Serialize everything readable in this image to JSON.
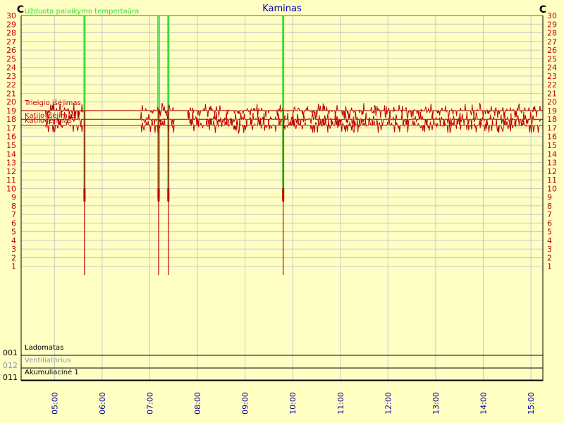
{
  "chart_data": {
    "type": "line",
    "title": "Kaminas",
    "y_unit_left": "C",
    "y_unit_right": "C",
    "ylim": [
      0,
      30
    ],
    "y_ticks": [
      1,
      2,
      3,
      4,
      5,
      6,
      7,
      8,
      9,
      10,
      11,
      12,
      13,
      14,
      15,
      16,
      17,
      18,
      19,
      20,
      21,
      22,
      23,
      24,
      25,
      26,
      27,
      28,
      29,
      30
    ],
    "x_tick_labels": [
      "05:00",
      "06:00",
      "07:00",
      "08:00",
      "09:00",
      "10:00",
      "11:00",
      "12:00",
      "13:00",
      "14:00",
      "15:00"
    ],
    "x_range_hours": [
      4.3,
      15.25
    ],
    "grid": true,
    "series": [
      {
        "name": "Užduota palaikymo tempertaūra",
        "color": "#33dd33",
        "base": 30,
        "events": [
          {
            "start": 5.62,
            "end": 5.64
          },
          {
            "start": 7.17,
            "end": 7.2
          },
          {
            "start": 7.38,
            "end": 7.4
          },
          {
            "start": 9.79,
            "end": 9.81
          }
        ]
      },
      {
        "name": "Trieigio išėjimas",
        "color": "#c00000",
        "base": 19
      },
      {
        "name": "Katilo išėjimas",
        "color": "#c00000",
        "base": 18
      },
      {
        "name": "Katilo įėjimas",
        "color": "#c00000",
        "base": 17.3
      }
    ],
    "drop_events_hours": [
      5.63,
      7.185,
      7.39,
      9.8
    ],
    "digital_tracks": [
      {
        "code": "001",
        "name": "Ladomatas",
        "label_color": "#000000"
      },
      {
        "code": "012",
        "name": "Ventiliatorius",
        "label_color": "#8899aa"
      },
      {
        "code": "011",
        "name": "Akumuliacinė 1",
        "label_color": "#000000"
      }
    ]
  }
}
